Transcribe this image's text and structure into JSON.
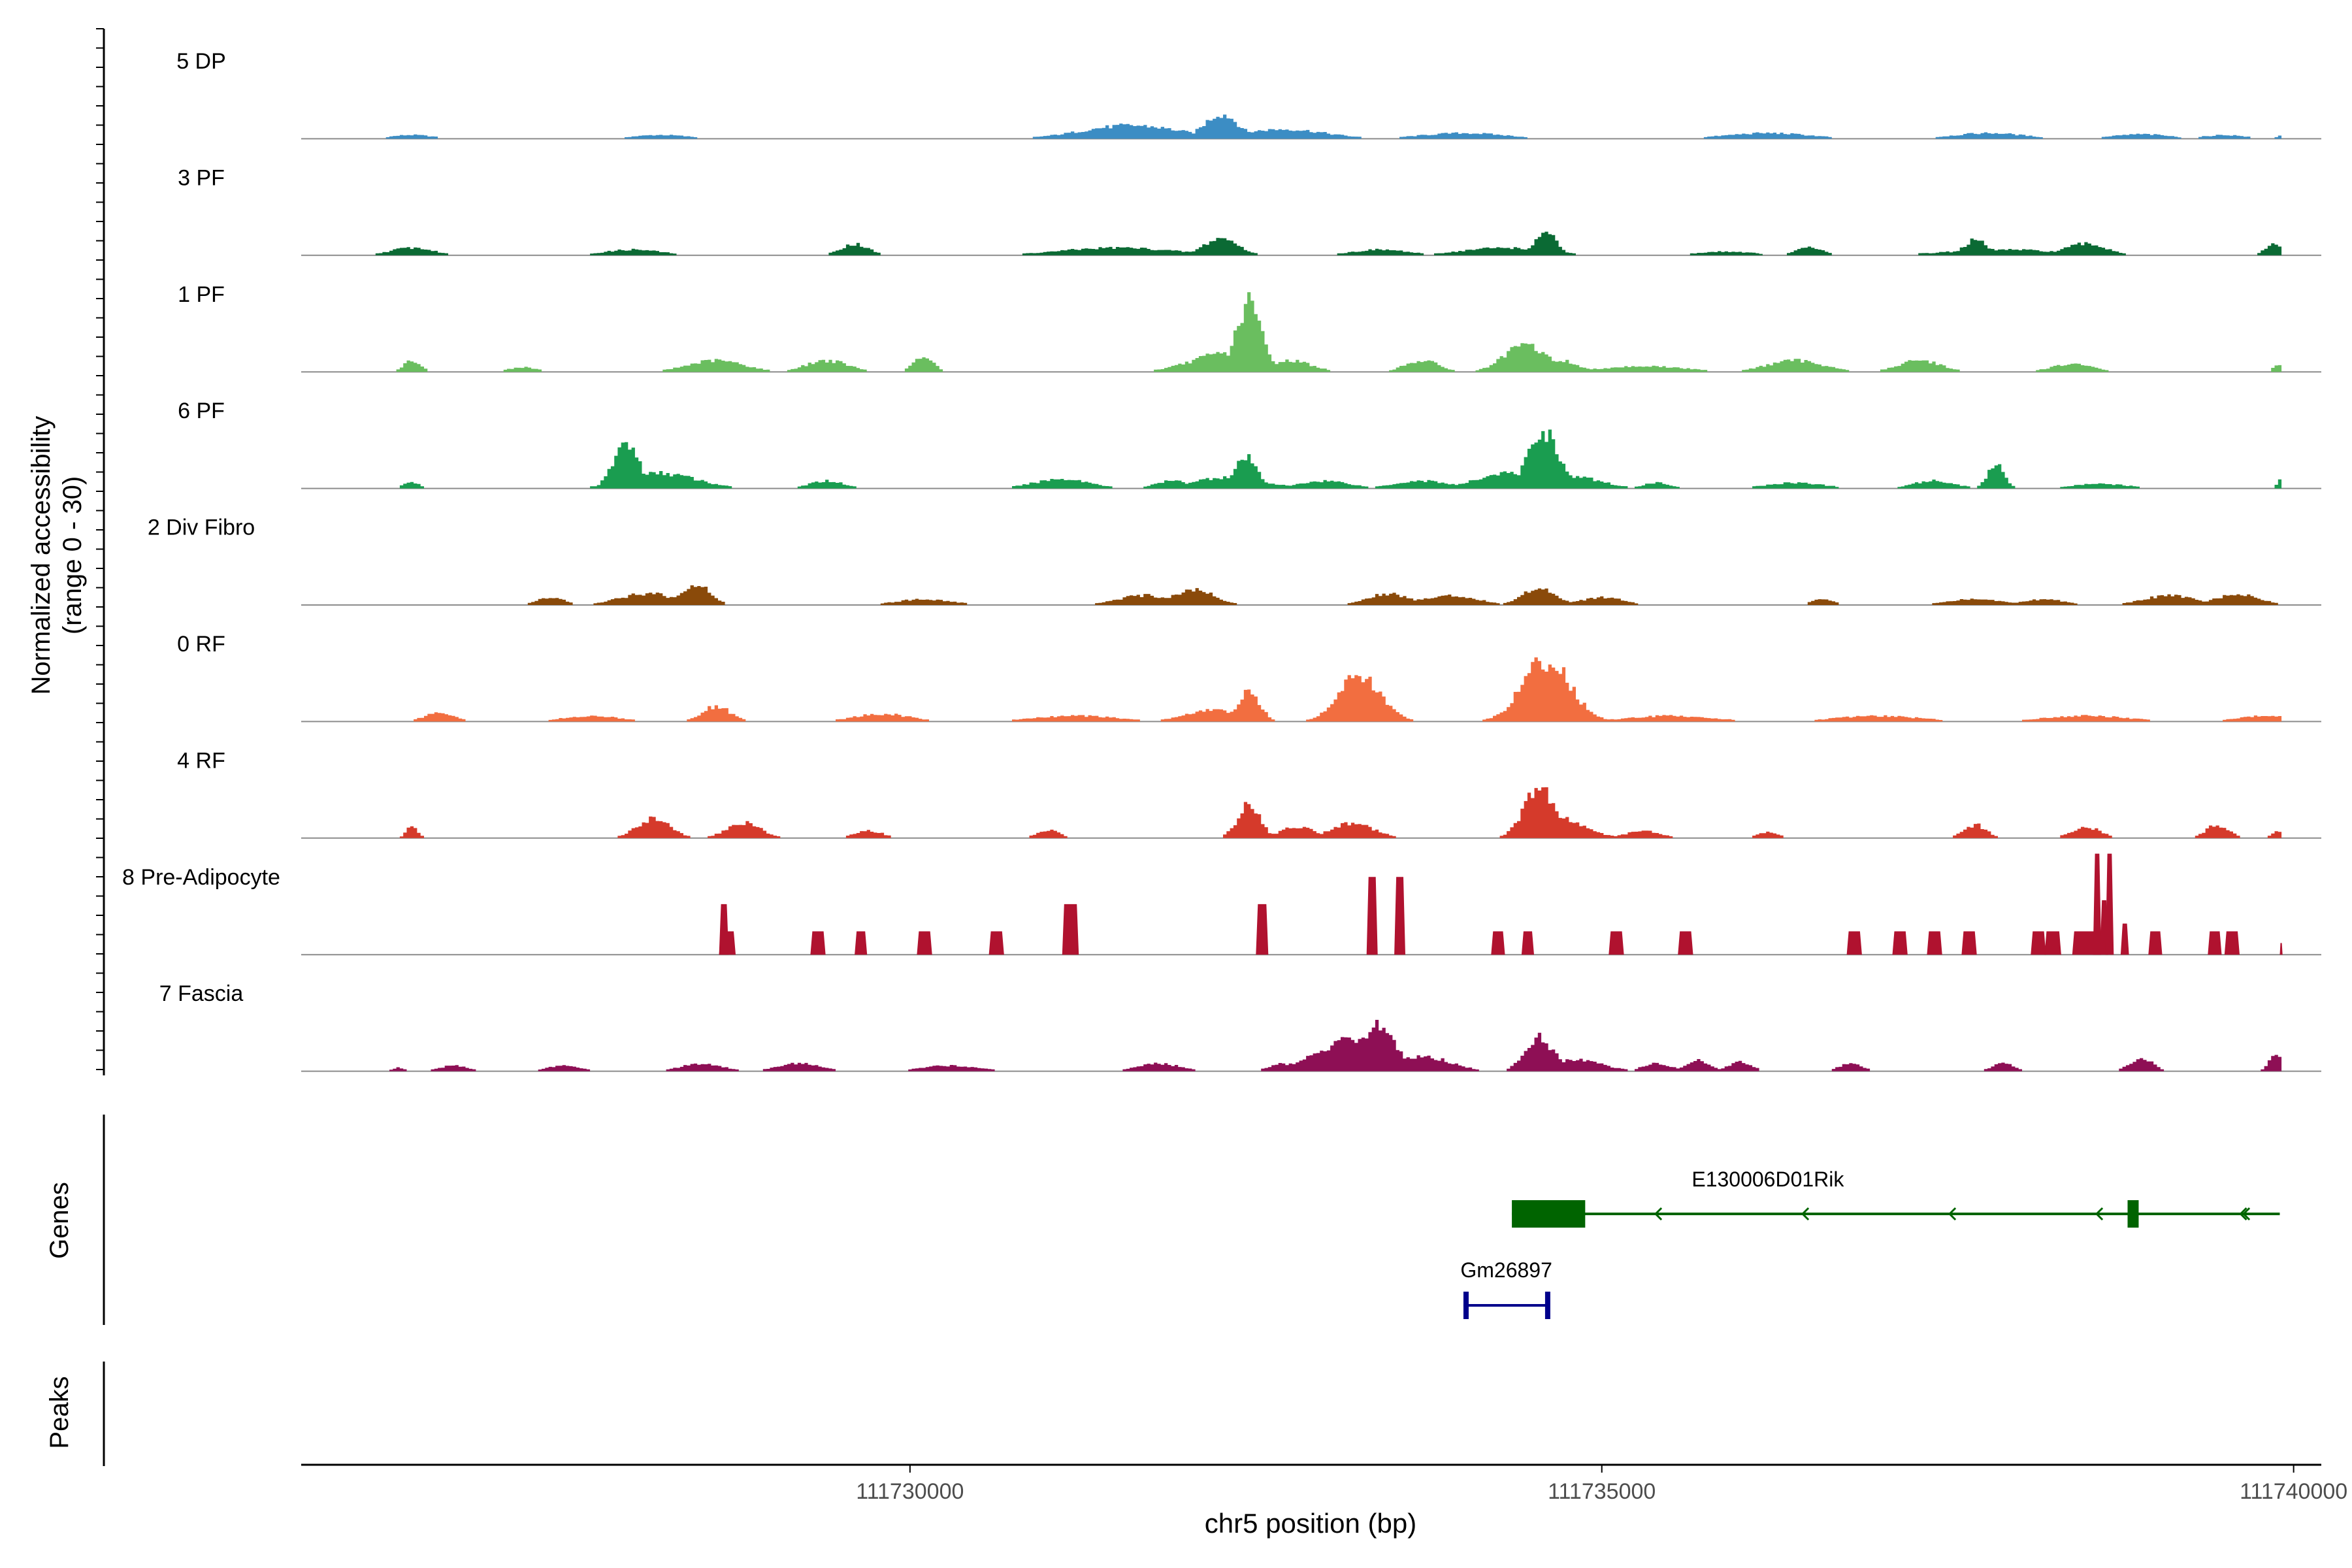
{
  "chart_data": {
    "type": "area",
    "title": "",
    "ylabel_line1": "Normalized accessibility",
    "ylabel_line2": "(range 0 - 30)",
    "xlabel": "chr5 position (bp)",
    "xlim": [
      111725600,
      111740200
    ],
    "ylim": [
      0,
      30
    ],
    "x_ticks": [
      111730000,
      111735000,
      111740000
    ],
    "x_tick_labels": [
      "111730000",
      "111735000",
      "111740000"
    ],
    "track_sections": [
      "Genes",
      "Peaks"
    ],
    "series": [
      {
        "name": "5 DP",
        "color": "#3C8DC4",
        "peaks": [
          [
            111732250,
            120,
            6.5
          ],
          [
            111731600,
            350,
            3.5
          ],
          [
            111732700,
            300,
            2.5
          ],
          [
            111734000,
            300,
            1.5
          ],
          [
            111736200,
            300,
            1.5
          ],
          [
            111737800,
            250,
            1.5
          ],
          [
            111738900,
            200,
            1.2
          ],
          [
            111726400,
            150,
            1.0
          ],
          [
            111728200,
            200,
            1.0
          ],
          [
            111739500,
            150,
            1.0
          ],
          [
            111739950,
            50,
            1.5
          ]
        ]
      },
      {
        "name": "3 PF",
        "color": "#0B6A34",
        "peaks": [
          [
            111734600,
            70,
            6.5
          ],
          [
            111732250,
            120,
            4.5
          ],
          [
            111737700,
            80,
            4.0
          ],
          [
            111739860,
            60,
            3.0
          ],
          [
            111729600,
            100,
            3.0
          ],
          [
            111731500,
            400,
            2.0
          ],
          [
            111734300,
            300,
            2.0
          ],
          [
            111738500,
            150,
            3.0
          ],
          [
            111736500,
            100,
            2.0
          ],
          [
            111726400,
            150,
            2.0
          ],
          [
            111728000,
            200,
            1.5
          ],
          [
            111737900,
            400,
            1.5
          ],
          [
            111733400,
            200,
            1.5
          ],
          [
            111735900,
            200,
            1.0
          ]
        ]
      },
      {
        "name": "1 PF",
        "color": "#6ABE5F",
        "peaks": [
          [
            111732450,
            90,
            18.0
          ],
          [
            111732300,
            250,
            5.0
          ],
          [
            111734450,
            150,
            7.0
          ],
          [
            111734700,
            120,
            3.0
          ],
          [
            111732750,
            150,
            3.0
          ],
          [
            111730100,
            70,
            4.0
          ],
          [
            111729400,
            150,
            3.0
          ],
          [
            111728600,
            200,
            3.0
          ],
          [
            111733700,
            120,
            3.0
          ],
          [
            111736400,
            200,
            3.0
          ],
          [
            111737300,
            150,
            3.0
          ],
          [
            111738400,
            150,
            2.0
          ],
          [
            111726400,
            60,
            3.0
          ],
          [
            111727200,
            100,
            1.2
          ],
          [
            111735300,
            300,
            1.5
          ],
          [
            111739900,
            40,
            2.0
          ]
        ]
      },
      {
        "name": "6 PF",
        "color": "#1A9D50",
        "peaks": [
          [
            111727950,
            90,
            12.0
          ],
          [
            111728200,
            250,
            4.0
          ],
          [
            111734580,
            110,
            15.0
          ],
          [
            111734300,
            200,
            4.0
          ],
          [
            111734800,
            200,
            3.0
          ],
          [
            111732430,
            80,
            8.0
          ],
          [
            111732300,
            250,
            3.0
          ],
          [
            111733000,
            180,
            2.0
          ],
          [
            111737850,
            60,
            6.0
          ],
          [
            111737400,
            150,
            2.0
          ],
          [
            111739960,
            50,
            5.0
          ],
          [
            111731100,
            200,
            2.5
          ],
          [
            111733700,
            200,
            2.0
          ],
          [
            111726400,
            60,
            1.5
          ],
          [
            111729400,
            120,
            2.0
          ],
          [
            111736400,
            200,
            1.5
          ],
          [
            111738600,
            200,
            1.2
          ],
          [
            111735400,
            100,
            1.5
          ],
          [
            111731900,
            120,
            2.0
          ]
        ]
      },
      {
        "name": "2 Div Fibro",
        "color": "#8A4A0A",
        "peaks": [
          [
            111728450,
            100,
            5.5
          ],
          [
            111728100,
            200,
            3.0
          ],
          [
            111734550,
            120,
            4.5
          ],
          [
            111732050,
            150,
            4.0
          ],
          [
            111731700,
            200,
            2.5
          ],
          [
            111733450,
            150,
            3.0
          ],
          [
            111733900,
            200,
            2.5
          ],
          [
            111735000,
            150,
            2.0
          ],
          [
            111739600,
            150,
            3.0
          ],
          [
            111739100,
            180,
            2.5
          ],
          [
            111727400,
            100,
            2.0
          ],
          [
            111730100,
            200,
            1.5
          ],
          [
            111737700,
            200,
            1.5
          ],
          [
            111736600,
            80,
            1.5
          ],
          [
            111738200,
            150,
            1.5
          ]
        ]
      },
      {
        "name": "0 RF",
        "color": "#F26E40",
        "peaks": [
          [
            111734600,
            170,
            16.0
          ],
          [
            111733250,
            150,
            12.0
          ],
          [
            111732450,
            80,
            7.5
          ],
          [
            111732200,
            200,
            3.0
          ],
          [
            111728600,
            100,
            4.0
          ],
          [
            111726600,
            100,
            2.5
          ],
          [
            111729800,
            200,
            2.0
          ],
          [
            111731200,
            300,
            1.5
          ],
          [
            111735500,
            300,
            1.5
          ],
          [
            111737000,
            300,
            1.5
          ],
          [
            111738500,
            300,
            1.5
          ],
          [
            111739800,
            200,
            1.5
          ],
          [
            111727700,
            200,
            1.5
          ]
        ]
      },
      {
        "name": "4 RF",
        "color": "#D53A2B",
        "peaks": [
          [
            111734550,
            110,
            13.0
          ],
          [
            111734700,
            180,
            5.0
          ],
          [
            111732450,
            80,
            9.0
          ],
          [
            111728150,
            120,
            5.0
          ],
          [
            111728800,
            120,
            4.0
          ],
          [
            111733200,
            150,
            4.0
          ],
          [
            111732800,
            120,
            3.0
          ],
          [
            111737700,
            80,
            3.5
          ],
          [
            111738500,
            100,
            3.0
          ],
          [
            111739450,
            80,
            3.5
          ],
          [
            111726400,
            40,
            3.0
          ],
          [
            111729700,
            100,
            2.0
          ],
          [
            111731000,
            80,
            2.0
          ],
          [
            111735300,
            120,
            2.0
          ],
          [
            111736200,
            80,
            1.5
          ],
          [
            111739900,
            50,
            2.0
          ]
        ]
      },
      {
        "name": "8 Pre-Adipocyte",
        "color": "#B0122F",
        "blocks": [
          [
            111728620,
            70,
            13.0
          ],
          [
            111728620,
            120,
            6.0
          ],
          [
            111729280,
            110,
            6.0
          ],
          [
            111729600,
            90,
            6.0
          ],
          [
            111730050,
            110,
            6.0
          ],
          [
            111730570,
            110,
            6.0
          ],
          [
            111731100,
            120,
            13.0
          ],
          [
            111732500,
            90,
            13.0
          ],
          [
            111733300,
            80,
            20.0
          ],
          [
            111733500,
            80,
            20.0
          ],
          [
            111734200,
            100,
            6.0
          ],
          [
            111734420,
            90,
            6.0
          ],
          [
            111735050,
            110,
            6.0
          ],
          [
            111735550,
            110,
            6.0
          ],
          [
            111736770,
            110,
            6.0
          ],
          [
            111737100,
            110,
            6.0
          ],
          [
            111737350,
            110,
            6.0
          ],
          [
            111737600,
            110,
            6.0
          ],
          [
            111738100,
            110,
            6.0
          ],
          [
            111738200,
            120,
            6.0
          ],
          [
            111738400,
            200,
            6.0
          ],
          [
            111738550,
            60,
            26.0
          ],
          [
            111738600,
            60,
            14.0
          ],
          [
            111738640,
            60,
            26.0
          ],
          [
            111738750,
            60,
            8.0
          ],
          [
            111738950,
            100,
            6.0
          ],
          [
            111739380,
            100,
            6.0
          ],
          [
            111739500,
            110,
            6.0
          ],
          [
            111739900,
            20,
            3.0
          ]
        ]
      },
      {
        "name": "7 Fascia",
        "color": "#8E0F55",
        "peaks": [
          [
            111733400,
            110,
            12.0
          ],
          [
            111733200,
            250,
            8.0
          ],
          [
            111733700,
            200,
            4.0
          ],
          [
            111734550,
            100,
            9.0
          ],
          [
            111734800,
            200,
            3.0
          ],
          [
            111729200,
            150,
            2.0
          ],
          [
            111728500,
            150,
            2.0
          ],
          [
            111730300,
            200,
            1.5
          ],
          [
            111731800,
            150,
            2.0
          ],
          [
            111732700,
            100,
            2.0
          ],
          [
            111735700,
            80,
            3.0
          ],
          [
            111736000,
            80,
            2.5
          ],
          [
            111738900,
            80,
            3.5
          ],
          [
            111737900,
            80,
            2.0
          ],
          [
            111736800,
            80,
            2.0
          ],
          [
            111739880,
            50,
            5.0
          ],
          [
            111735400,
            100,
            2.0
          ],
          [
            111726700,
            100,
            1.5
          ],
          [
            111727500,
            120,
            1.5
          ],
          [
            111726300,
            40,
            1.0
          ]
        ]
      }
    ],
    "genes": [
      {
        "name": "E130006D01Rik",
        "color": "#006400",
        "start": 111734350,
        "end": 111739900,
        "strand": "-",
        "exons": [
          [
            111734350,
            111734880
          ],
          [
            111738800,
            111738880
          ]
        ]
      },
      {
        "name": "Gm26897",
        "color": "#00008B",
        "start": 111734000,
        "end": 111734620,
        "strand": "+",
        "exons": [
          [
            111734000,
            111734030
          ],
          [
            111734590,
            111734620
          ]
        ]
      }
    ]
  }
}
